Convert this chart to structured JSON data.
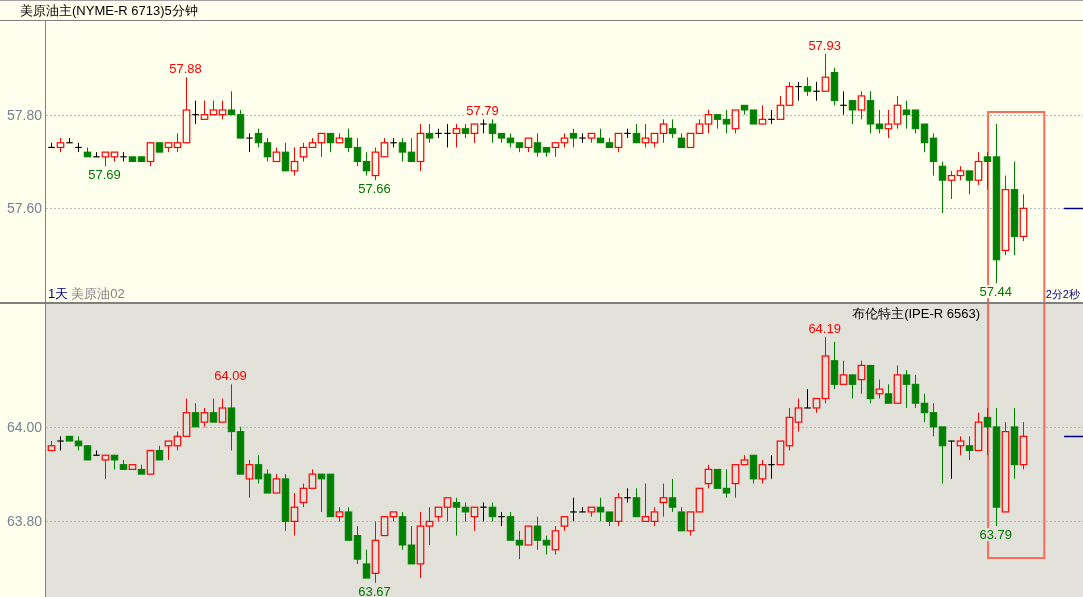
{
  "chart_data": [
    {
      "type": "candlestick",
      "title": "美原油主(NYME-R 6713)5分钟",
      "categories": [
        null,
        null,
        null,
        null,
        null,
        null,
        null,
        null,
        null,
        null,
        null,
        null,
        null,
        null,
        null,
        null,
        null,
        null,
        null,
        null,
        null,
        null,
        null,
        null,
        null,
        null,
        null,
        null,
        null,
        null,
        null,
        null,
        null,
        null,
        null,
        null,
        null,
        null,
        null,
        null,
        null,
        null,
        null,
        null,
        null,
        null,
        null,
        null,
        null,
        null,
        null,
        null,
        null,
        null,
        null,
        null,
        null,
        null,
        null,
        null,
        null,
        null,
        null,
        null,
        null,
        null,
        null,
        null,
        null,
        null,
        null,
        null,
        null,
        null,
        null,
        null,
        null,
        null,
        null,
        null,
        null,
        null,
        null,
        null,
        null,
        null,
        null,
        null,
        null,
        null,
        null,
        null,
        null,
        null,
        null,
        null,
        null,
        null,
        null,
        null,
        null,
        null,
        null,
        null,
        null,
        null,
        null,
        null,
        null
      ],
      "ohlc": [
        [
          57.73,
          57.74,
          57.73,
          57.73
        ],
        [
          57.73,
          57.75,
          57.72,
          57.74
        ],
        [
          57.74,
          57.75,
          57.74,
          57.74
        ],
        [
          57.73,
          57.74,
          57.72,
          57.73
        ],
        [
          57.72,
          57.73,
          57.71,
          57.71
        ],
        [
          57.71,
          57.72,
          57.71,
          57.71
        ],
        [
          57.71,
          57.72,
          57.69,
          57.72
        ],
        [
          57.71,
          57.72,
          57.7,
          57.72
        ],
        [
          57.71,
          57.72,
          57.7,
          57.71
        ],
        [
          57.71,
          57.71,
          57.7,
          57.7
        ],
        [
          57.71,
          57.71,
          57.7,
          57.7
        ],
        [
          57.7,
          57.74,
          57.69,
          57.74
        ],
        [
          57.74,
          57.74,
          57.72,
          57.72
        ],
        [
          57.73,
          57.74,
          57.72,
          57.74
        ],
        [
          57.73,
          57.76,
          57.72,
          57.74
        ],
        [
          57.74,
          57.88,
          57.74,
          57.81
        ],
        [
          57.8,
          57.83,
          57.78,
          57.8
        ],
        [
          57.79,
          57.83,
          57.79,
          57.8
        ],
        [
          57.8,
          57.83,
          57.8,
          57.81
        ],
        [
          57.8,
          57.83,
          57.79,
          57.81
        ],
        [
          57.81,
          57.85,
          57.8,
          57.8
        ],
        [
          57.8,
          57.81,
          57.75,
          57.75
        ],
        [
          57.75,
          57.76,
          57.72,
          57.75
        ],
        [
          57.76,
          57.77,
          57.73,
          57.74
        ],
        [
          57.74,
          57.75,
          57.7,
          57.71
        ],
        [
          57.7,
          57.73,
          57.7,
          57.72
        ],
        [
          57.72,
          57.74,
          57.68,
          57.68
        ],
        [
          57.68,
          57.73,
          57.67,
          57.7
        ],
        [
          57.71,
          57.74,
          57.7,
          57.73
        ],
        [
          57.73,
          57.75,
          57.73,
          57.74
        ],
        [
          57.74,
          57.76,
          57.71,
          57.76
        ],
        [
          57.76,
          57.76,
          57.72,
          57.74
        ],
        [
          57.74,
          57.76,
          57.74,
          57.75
        ],
        [
          57.75,
          57.77,
          57.72,
          57.73
        ],
        [
          57.73,
          57.75,
          57.69,
          57.7
        ],
        [
          57.7,
          57.72,
          57.67,
          57.68
        ],
        [
          57.67,
          57.73,
          57.66,
          57.72
        ],
        [
          57.71,
          57.75,
          57.71,
          57.74
        ],
        [
          57.74,
          57.75,
          57.73,
          57.74
        ],
        [
          57.74,
          57.75,
          57.7,
          57.72
        ],
        [
          57.72,
          57.75,
          57.7,
          57.7
        ],
        [
          57.7,
          57.78,
          57.68,
          57.76
        ],
        [
          57.76,
          57.78,
          57.74,
          57.75
        ],
        [
          57.76,
          57.77,
          57.75,
          57.76
        ],
        [
          57.76,
          57.78,
          57.73,
          57.76
        ],
        [
          57.76,
          57.78,
          57.73,
          57.77
        ],
        [
          57.77,
          57.78,
          57.75,
          57.76
        ],
        [
          57.76,
          57.78,
          57.74,
          57.78
        ],
        [
          57.78,
          57.79,
          57.76,
          57.78
        ],
        [
          57.78,
          57.79,
          57.74,
          57.76
        ],
        [
          57.76,
          57.76,
          57.74,
          57.75
        ],
        [
          57.75,
          57.76,
          57.73,
          57.74
        ],
        [
          57.74,
          57.74,
          57.72,
          57.73
        ],
        [
          57.73,
          57.75,
          57.72,
          57.75
        ],
        [
          57.74,
          57.76,
          57.71,
          57.72
        ],
        [
          57.73,
          57.73,
          57.71,
          57.72
        ],
        [
          57.73,
          57.74,
          57.71,
          57.74
        ],
        [
          57.74,
          57.76,
          57.73,
          57.75
        ],
        [
          57.76,
          57.77,
          57.73,
          57.75
        ],
        [
          57.75,
          57.76,
          57.74,
          57.75
        ],
        [
          57.75,
          57.76,
          57.74,
          57.76
        ],
        [
          57.75,
          57.77,
          57.74,
          57.74
        ],
        [
          57.74,
          57.75,
          57.73,
          57.73
        ],
        [
          57.73,
          57.76,
          57.72,
          57.76
        ],
        [
          57.76,
          57.77,
          57.75,
          57.76
        ],
        [
          57.76,
          57.78,
          57.74,
          57.74
        ],
        [
          57.74,
          57.78,
          57.73,
          57.75
        ],
        [
          57.74,
          57.76,
          57.73,
          57.76
        ],
        [
          57.76,
          57.79,
          57.74,
          57.78
        ],
        [
          57.77,
          57.79,
          57.75,
          57.76
        ],
        [
          57.75,
          57.76,
          57.73,
          57.73
        ],
        [
          57.73,
          57.76,
          57.73,
          57.76
        ],
        [
          57.76,
          57.79,
          57.76,
          57.78
        ],
        [
          57.78,
          57.81,
          57.76,
          57.8
        ],
        [
          57.8,
          57.8,
          57.77,
          57.79
        ],
        [
          57.79,
          57.81,
          57.76,
          57.78
        ],
        [
          57.77,
          57.81,
          57.76,
          57.81
        ],
        [
          57.82,
          57.82,
          57.8,
          57.81
        ],
        [
          57.81,
          57.81,
          57.78,
          57.78
        ],
        [
          57.78,
          57.82,
          57.78,
          57.79
        ],
        [
          57.79,
          57.81,
          57.78,
          57.79
        ],
        [
          57.79,
          57.84,
          57.79,
          57.82
        ],
        [
          57.82,
          57.87,
          57.82,
          57.86
        ],
        [
          57.86,
          57.87,
          57.83,
          57.86
        ],
        [
          57.86,
          57.88,
          57.84,
          57.85
        ],
        [
          57.85,
          57.87,
          57.83,
          57.85
        ],
        [
          57.85,
          57.93,
          57.85,
          57.88
        ],
        [
          57.89,
          57.9,
          57.82,
          57.83
        ],
        [
          57.82,
          57.85,
          57.8,
          57.82
        ],
        [
          57.83,
          57.83,
          57.78,
          57.81
        ],
        [
          57.81,
          57.85,
          57.79,
          57.84
        ],
        [
          57.83,
          57.85,
          57.76,
          57.78
        ],
        [
          57.78,
          57.81,
          57.76,
          57.77
        ],
        [
          57.77,
          57.81,
          57.75,
          57.78
        ],
        [
          57.78,
          57.84,
          57.77,
          57.82
        ],
        [
          57.81,
          57.83,
          57.77,
          57.8
        ],
        [
          57.81,
          57.81,
          57.76,
          57.77
        ],
        [
          57.78,
          57.78,
          57.72,
          57.74
        ],
        [
          57.75,
          57.76,
          57.67,
          57.7
        ],
        [
          57.69,
          57.7,
          57.59,
          57.66
        ],
        [
          57.66,
          57.68,
          57.62,
          57.67
        ],
        [
          57.67,
          57.69,
          57.66,
          57.68
        ],
        [
          57.68,
          57.68,
          57.63,
          57.66
        ],
        [
          57.66,
          57.72,
          57.65,
          57.7
        ],
        [
          57.71,
          57.72,
          57.64,
          57.7
        ],
        [
          57.71,
          57.78,
          57.44,
          57.49
        ],
        [
          57.51,
          57.67,
          57.5,
          57.64
        ],
        [
          57.64,
          57.7,
          57.5,
          57.54
        ],
        [
          57.54,
          57.63,
          57.53,
          57.6
        ]
      ],
      "colors": [
        "#000000",
        "#ff0000",
        "#000000",
        "#000000",
        "#008000",
        "#000000",
        "#ff0000",
        "#ff0000",
        "#000000",
        "#008000",
        "#008000",
        "#ff0000",
        "#008000",
        "#ff0000",
        "#ff0000",
        "#ff0000",
        "#000000",
        "#ff0000",
        "#ff0000",
        "#ff0000",
        "#008000",
        "#008000",
        "#000000",
        "#008000",
        "#008000",
        "#ff0000",
        "#008000",
        "#ff0000",
        "#ff0000",
        "#ff0000",
        "#ff0000",
        "#008000",
        "#ff0000",
        "#008000",
        "#008000",
        "#008000",
        "#ff0000",
        "#ff0000",
        "#000000",
        "#008000",
        "#008000",
        "#ff0000",
        "#008000",
        "#000000",
        "#000000",
        "#ff0000",
        "#008000",
        "#ff0000",
        "#000000",
        "#008000",
        "#008000",
        "#008000",
        "#008000",
        "#ff0000",
        "#008000",
        "#008000",
        "#ff0000",
        "#ff0000",
        "#008000",
        "#000000",
        "#ff0000",
        "#008000",
        "#008000",
        "#ff0000",
        "#000000",
        "#008000",
        "#ff0000",
        "#ff0000",
        "#ff0000",
        "#008000",
        "#008000",
        "#ff0000",
        "#ff0000",
        "#ff0000",
        "#008000",
        "#008000",
        "#ff0000",
        "#008000",
        "#008000",
        "#ff0000",
        "#000000",
        "#ff0000",
        "#ff0000",
        "#000000",
        "#008000",
        "#000000",
        "#ff0000",
        "#008000",
        "#000000",
        "#008000",
        "#ff0000",
        "#008000",
        "#008000",
        "#ff0000",
        "#ff0000",
        "#008000",
        "#008000",
        "#008000",
        "#008000",
        "#008000",
        "#ff0000",
        "#ff0000",
        "#008000",
        "#ff0000",
        "#008000",
        "#008000",
        "#ff0000",
        "#008000",
        "#ff0000"
      ],
      "ylim": [
        57.4,
        58.0
      ],
      "yticks": [
        {
          "value": 57.8,
          "label": "57.80"
        },
        {
          "value": 57.6,
          "label": "57.60"
        }
      ],
      "grid": "y",
      "tick_labels": "y",
      "annotations": [
        {
          "text": "57.88",
          "y": 57.88
        },
        {
          "text": "57.69",
          "y": 57.69
        },
        {
          "text": "57.66",
          "y": 57.66
        },
        {
          "text": "57.79",
          "y": 57.79
        },
        {
          "text": "57.93",
          "y": 57.93
        },
        {
          "text": "57.44",
          "y": 57.44
        },
        "1天",
        "美原油02",
        "2分2秒"
      ]
    },
    {
      "type": "candlestick",
      "title": "布伦特主(IPE-R 6563)",
      "categories": [
        null,
        null,
        null,
        null,
        null,
        null,
        null,
        null,
        null,
        null,
        null,
        null,
        null,
        null,
        null,
        null,
        null,
        null,
        null,
        null,
        null,
        null,
        null,
        null,
        null,
        null,
        null,
        null,
        null,
        null,
        null,
        null,
        null,
        null,
        null,
        null,
        null,
        null,
        null,
        null,
        null,
        null,
        null,
        null,
        null,
        null,
        null,
        null,
        null,
        null,
        null,
        null,
        null,
        null,
        null,
        null,
        null,
        null,
        null,
        null,
        null,
        null,
        null,
        null,
        null,
        null,
        null,
        null,
        null,
        null,
        null,
        null,
        null,
        null,
        null,
        null,
        null,
        null,
        null,
        null,
        null,
        null,
        null,
        null,
        null,
        null,
        null,
        null,
        null,
        null,
        null,
        null,
        null,
        null,
        null,
        null,
        null,
        null,
        null,
        null,
        null,
        null,
        null,
        null,
        null,
        null,
        null,
        null,
        null
      ],
      "ohlc": [
        [
          63.95,
          63.97,
          63.95,
          63.96
        ],
        [
          63.97,
          63.98,
          63.95,
          63.97
        ],
        [
          63.98,
          63.98,
          63.97,
          63.97
        ],
        [
          63.97,
          63.98,
          63.95,
          63.96
        ],
        [
          63.96,
          63.96,
          63.93,
          63.93
        ],
        [
          63.94,
          63.95,
          63.94,
          63.94
        ],
        [
          63.93,
          63.94,
          63.89,
          63.94
        ],
        [
          63.94,
          63.94,
          63.91,
          63.93
        ],
        [
          63.92,
          63.93,
          63.91,
          63.91
        ],
        [
          63.91,
          63.92,
          63.91,
          63.92
        ],
        [
          63.91,
          63.92,
          63.9,
          63.9
        ],
        [
          63.9,
          63.95,
          63.9,
          63.95
        ],
        [
          63.95,
          63.96,
          63.93,
          63.93
        ],
        [
          63.96,
          63.97,
          63.93,
          63.97
        ],
        [
          63.96,
          63.99,
          63.95,
          63.98
        ],
        [
          63.98,
          64.06,
          63.98,
          64.03
        ],
        [
          64.03,
          64.05,
          64.0,
          64.0
        ],
        [
          64.01,
          64.04,
          64.0,
          64.03
        ],
        [
          64.03,
          64.06,
          64.01,
          64.01
        ],
        [
          64.01,
          64.06,
          64.01,
          64.04
        ],
        [
          64.04,
          64.09,
          63.95,
          63.99
        ],
        [
          63.99,
          64.0,
          63.9,
          63.9
        ],
        [
          63.89,
          63.93,
          63.85,
          63.92
        ],
        [
          63.92,
          63.94,
          63.88,
          63.89
        ],
        [
          63.9,
          63.91,
          63.86,
          63.86
        ],
        [
          63.86,
          63.9,
          63.86,
          63.89
        ],
        [
          63.89,
          63.9,
          63.78,
          63.8
        ],
        [
          63.8,
          63.86,
          63.77,
          63.83
        ],
        [
          63.84,
          63.88,
          63.83,
          63.87
        ],
        [
          63.87,
          63.91,
          63.87,
          63.9
        ],
        [
          63.9,
          63.9,
          63.82,
          63.89
        ],
        [
          63.9,
          63.9,
          63.81,
          63.81
        ],
        [
          63.81,
          63.83,
          63.8,
          63.82
        ],
        [
          63.82,
          63.83,
          63.76,
          63.76
        ],
        [
          63.77,
          63.79,
          63.71,
          63.72
        ],
        [
          63.71,
          63.74,
          63.68,
          63.68
        ],
        [
          63.69,
          63.8,
          63.67,
          63.76
        ],
        [
          63.77,
          63.81,
          63.77,
          63.81
        ],
        [
          63.81,
          63.82,
          63.8,
          63.82
        ],
        [
          63.81,
          63.82,
          63.74,
          63.75
        ],
        [
          63.75,
          63.79,
          63.71,
          63.71
        ],
        [
          63.71,
          63.82,
          63.68,
          63.79
        ],
        [
          63.79,
          63.83,
          63.75,
          63.8
        ],
        [
          63.81,
          63.83,
          63.8,
          63.83
        ],
        [
          63.83,
          63.85,
          63.8,
          63.85
        ],
        [
          63.84,
          63.85,
          63.77,
          63.83
        ],
        [
          63.83,
          63.84,
          63.8,
          63.82
        ],
        [
          63.81,
          63.83,
          63.78,
          63.83
        ],
        [
          63.83,
          63.84,
          63.8,
          63.83
        ],
        [
          63.83,
          63.84,
          63.8,
          63.81
        ],
        [
          63.81,
          63.82,
          63.79,
          63.81
        ],
        [
          63.81,
          63.82,
          63.76,
          63.76
        ],
        [
          63.76,
          63.78,
          63.72,
          63.75
        ],
        [
          63.75,
          63.79,
          63.75,
          63.79
        ],
        [
          63.79,
          63.81,
          63.74,
          63.76
        ],
        [
          63.76,
          63.77,
          63.73,
          63.75
        ],
        [
          63.74,
          63.79,
          63.73,
          63.78
        ],
        [
          63.79,
          63.81,
          63.78,
          63.81
        ],
        [
          63.82,
          63.85,
          63.8,
          63.82
        ],
        [
          63.82,
          63.83,
          63.82,
          63.82
        ],
        [
          63.82,
          63.83,
          63.81,
          63.83
        ],
        [
          63.83,
          63.85,
          63.8,
          63.82
        ],
        [
          63.82,
          63.82,
          63.79,
          63.8
        ],
        [
          63.8,
          63.86,
          63.79,
          63.85
        ],
        [
          63.85,
          63.87,
          63.84,
          63.85
        ],
        [
          63.85,
          63.87,
          63.81,
          63.81
        ],
        [
          63.8,
          63.88,
          63.8,
          63.81
        ],
        [
          63.8,
          63.83,
          63.79,
          63.82
        ],
        [
          63.84,
          63.88,
          63.81,
          63.85
        ],
        [
          63.85,
          63.89,
          63.82,
          63.83
        ],
        [
          63.82,
          63.83,
          63.78,
          63.78
        ],
        [
          63.78,
          63.82,
          63.77,
          63.82
        ],
        [
          63.82,
          63.87,
          63.82,
          63.87
        ],
        [
          63.88,
          63.92,
          63.87,
          63.91
        ],
        [
          63.91,
          63.91,
          63.87,
          63.87
        ],
        [
          63.87,
          63.91,
          63.85,
          63.86
        ],
        [
          63.88,
          63.92,
          63.85,
          63.92
        ],
        [
          63.92,
          63.94,
          63.92,
          63.93
        ],
        [
          63.94,
          63.94,
          63.88,
          63.89
        ],
        [
          63.89,
          63.93,
          63.88,
          63.92
        ],
        [
          63.92,
          63.94,
          63.89,
          63.92
        ],
        [
          63.92,
          63.97,
          63.92,
          63.97
        ],
        [
          63.96,
          64.04,
          63.95,
          64.02
        ],
        [
          64.01,
          64.06,
          63.99,
          64.04
        ],
        [
          64.04,
          64.08,
          64.04,
          64.04
        ],
        [
          64.04,
          64.06,
          64.03,
          64.06
        ],
        [
          64.06,
          64.19,
          64.05,
          64.15
        ],
        [
          64.14,
          64.18,
          64.08,
          64.09
        ],
        [
          64.09,
          64.14,
          64.09,
          64.11
        ],
        [
          64.11,
          64.11,
          64.06,
          64.09
        ],
        [
          64.1,
          64.14,
          64.07,
          64.13
        ],
        [
          64.13,
          64.13,
          64.05,
          64.06
        ],
        [
          64.07,
          64.1,
          64.06,
          64.08
        ],
        [
          64.07,
          64.09,
          64.05,
          64.05
        ],
        [
          64.05,
          64.13,
          64.05,
          64.11
        ],
        [
          64.11,
          64.12,
          64.04,
          64.09
        ],
        [
          64.09,
          64.11,
          64.04,
          64.05
        ],
        [
          64.05,
          64.07,
          64.01,
          64.03
        ],
        [
          64.03,
          64.05,
          63.98,
          64.0
        ],
        [
          64.0,
          64.0,
          63.88,
          63.96
        ],
        [
          63.97,
          63.97,
          63.89,
          63.97
        ],
        [
          63.96,
          63.98,
          63.94,
          63.97
        ],
        [
          63.96,
          63.98,
          63.93,
          63.95
        ],
        [
          63.95,
          64.03,
          63.95,
          64.01
        ],
        [
          64.02,
          64.04,
          63.94,
          64.0
        ],
        [
          64.0,
          64.04,
          63.79,
          63.83
        ],
        [
          63.82,
          64.01,
          63.82,
          63.99
        ],
        [
          64.0,
          64.04,
          63.89,
          63.92
        ],
        [
          63.92,
          64.01,
          63.91,
          63.98
        ]
      ],
      "colors": [
        "#ff0000",
        "#000000",
        "#008000",
        "#008000",
        "#008000",
        "#000000",
        "#ff0000",
        "#008000",
        "#008000",
        "#ff0000",
        "#008000",
        "#ff0000",
        "#008000",
        "#ff0000",
        "#ff0000",
        "#ff0000",
        "#008000",
        "#ff0000",
        "#008000",
        "#ff0000",
        "#008000",
        "#008000",
        "#ff0000",
        "#008000",
        "#008000",
        "#ff0000",
        "#008000",
        "#ff0000",
        "#ff0000",
        "#ff0000",
        "#008000",
        "#008000",
        "#ff0000",
        "#008000",
        "#008000",
        "#008000",
        "#ff0000",
        "#ff0000",
        "#ff0000",
        "#008000",
        "#008000",
        "#ff0000",
        "#ff0000",
        "#ff0000",
        "#ff0000",
        "#008000",
        "#008000",
        "#ff0000",
        "#000000",
        "#008000",
        "#000000",
        "#008000",
        "#008000",
        "#ff0000",
        "#008000",
        "#008000",
        "#ff0000",
        "#ff0000",
        "#000000",
        "#000000",
        "#ff0000",
        "#008000",
        "#008000",
        "#ff0000",
        "#000000",
        "#008000",
        "#ff0000",
        "#ff0000",
        "#ff0000",
        "#008000",
        "#008000",
        "#ff0000",
        "#ff0000",
        "#ff0000",
        "#008000",
        "#008000",
        "#ff0000",
        "#ff0000",
        "#008000",
        "#ff0000",
        "#000000",
        "#ff0000",
        "#ff0000",
        "#ff0000",
        "#000000",
        "#ff0000",
        "#ff0000",
        "#008000",
        "#ff0000",
        "#008000",
        "#ff0000",
        "#008000",
        "#ff0000",
        "#008000",
        "#ff0000",
        "#008000",
        "#008000",
        "#008000",
        "#008000",
        "#008000",
        "#000000",
        "#ff0000",
        "#008000",
        "#ff0000",
        "#008000",
        "#008000",
        "#ff0000",
        "#008000",
        "#ff0000"
      ],
      "ylim": [
        63.64,
        64.26
      ],
      "yticks": [
        {
          "value": 64.0,
          "label": "64.00"
        },
        {
          "value": 63.8,
          "label": "63.80"
        }
      ],
      "grid": "y",
      "tick_labels": "y",
      "annotations": [
        {
          "text": "64.09",
          "y": 64.09
        },
        {
          "text": "64.19",
          "y": 64.19
        },
        {
          "text": "63.67",
          "y": 63.67
        },
        {
          "text": "63.79",
          "y": 63.79
        }
      ]
    }
  ]
}
